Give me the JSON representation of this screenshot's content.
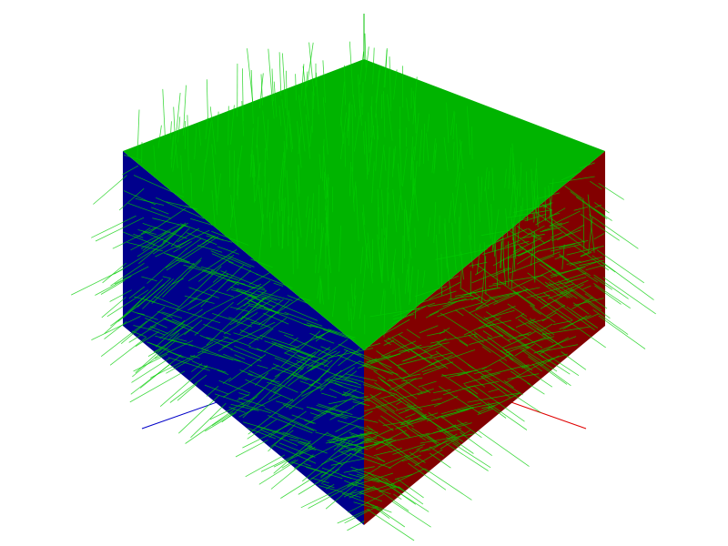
{
  "scene": {
    "background": "#ffffff",
    "faces": {
      "top": {
        "color": "#00b400"
      },
      "left": {
        "color": "#00008c"
      },
      "right": {
        "color": "#820000"
      }
    },
    "axes": {
      "x": {
        "color": "#e00000"
      },
      "y": {
        "color": "#00c000"
      },
      "z": {
        "color": "#0000c8"
      }
    },
    "normals": {
      "color": "#00cc00",
      "opacity": 0.75
    }
  }
}
